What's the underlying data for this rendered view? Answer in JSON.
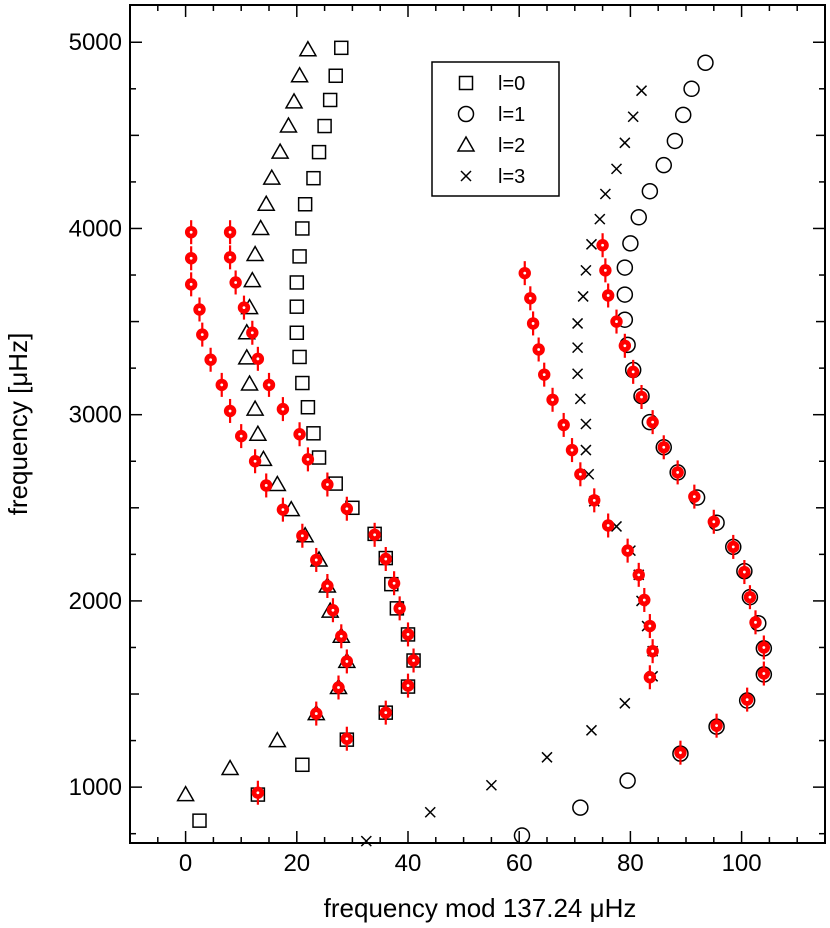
{
  "chart_data": {
    "type": "scatter",
    "xlabel": "frequency mod 137.24 μHz",
    "ylabel": "frequency [μHz]",
    "xlim": [
      -10,
      115
    ],
    "ylim": [
      700,
      5200
    ],
    "x_ticks": [
      0,
      20,
      40,
      60,
      80,
      100
    ],
    "y_ticks": [
      1000,
      2000,
      3000,
      4000,
      5000
    ],
    "legend_position": "top-center",
    "colors": {
      "model": "#000000",
      "observed": "#ff0000"
    },
    "series": [
      {
        "name": "l=0",
        "marker": "square",
        "points": [
          [
            2.5,
            820
          ],
          [
            13,
            960
          ],
          [
            21,
            1120
          ],
          [
            29,
            1255
          ],
          [
            36,
            1400
          ],
          [
            40,
            1540
          ],
          [
            41,
            1680
          ],
          [
            40,
            1820
          ],
          [
            38,
            1960
          ],
          [
            37,
            2090
          ],
          [
            36,
            2230
          ],
          [
            34,
            2360
          ],
          [
            30,
            2500
          ],
          [
            27,
            2630
          ],
          [
            24,
            2770
          ],
          [
            23,
            2900
          ],
          [
            22,
            3040
          ],
          [
            21,
            3170
          ],
          [
            20.5,
            3310
          ],
          [
            20,
            3440
          ],
          [
            20,
            3580
          ],
          [
            20,
            3710
          ],
          [
            20.5,
            3850
          ],
          [
            21,
            4000
          ],
          [
            21.5,
            4130
          ],
          [
            23,
            4270
          ],
          [
            24,
            4410
          ],
          [
            25,
            4550
          ],
          [
            26,
            4690
          ],
          [
            27,
            4820
          ],
          [
            28,
            4970
          ]
        ]
      },
      {
        "name": "l=1",
        "marker": "circle",
        "points": [
          [
            60.5,
            740
          ],
          [
            71,
            890
          ],
          [
            79.5,
            1035
          ],
          [
            89,
            1180
          ],
          [
            95.5,
            1325
          ],
          [
            101,
            1465
          ],
          [
            104,
            1605
          ],
          [
            104,
            1745
          ],
          [
            103,
            1880
          ],
          [
            101.5,
            2020
          ],
          [
            100.5,
            2160
          ],
          [
            98.5,
            2290
          ],
          [
            95.5,
            2420
          ],
          [
            92,
            2555
          ],
          [
            88.5,
            2690
          ],
          [
            86,
            2825
          ],
          [
            83.5,
            2960
          ],
          [
            82,
            3100
          ],
          [
            80.5,
            3240
          ],
          [
            79.5,
            3375
          ],
          [
            79,
            3510
          ],
          [
            79,
            3645
          ],
          [
            79,
            3790
          ],
          [
            80,
            3920
          ],
          [
            81.5,
            4060
          ],
          [
            83.5,
            4200
          ],
          [
            86,
            4340
          ],
          [
            88,
            4470
          ],
          [
            89.5,
            4610
          ],
          [
            91,
            4750
          ],
          [
            93.5,
            4890
          ]
        ]
      },
      {
        "name": "l=2",
        "marker": "triangle",
        "points": [
          [
            0,
            960
          ],
          [
            8,
            1100
          ],
          [
            16.5,
            1250
          ],
          [
            23.5,
            1395
          ],
          [
            27.5,
            1535
          ],
          [
            29,
            1675
          ],
          [
            28,
            1810
          ],
          [
            26,
            1945
          ],
          [
            25.5,
            2080
          ],
          [
            24,
            2220
          ],
          [
            21.5,
            2350
          ],
          [
            19,
            2490
          ],
          [
            16.5,
            2625
          ],
          [
            14,
            2760
          ],
          [
            13,
            2895
          ],
          [
            12.5,
            3030
          ],
          [
            11.5,
            3165
          ],
          [
            11,
            3305
          ],
          [
            11,
            3440
          ],
          [
            11.5,
            3575
          ],
          [
            12,
            3720
          ],
          [
            12.5,
            3860
          ],
          [
            13.5,
            4000
          ],
          [
            14.5,
            4130
          ],
          [
            15.5,
            4270
          ],
          [
            17,
            4410
          ],
          [
            18.5,
            4550
          ],
          [
            19.5,
            4680
          ],
          [
            20.5,
            4820
          ],
          [
            22,
            4960
          ]
        ]
      },
      {
        "name": "l=3",
        "marker": "cross",
        "points": [
          [
            32.5,
            710
          ],
          [
            44,
            865
          ],
          [
            55,
            1010
          ],
          [
            65,
            1160
          ],
          [
            73,
            1305
          ],
          [
            79,
            1450
          ],
          [
            84,
            1595
          ],
          [
            84,
            1730
          ],
          [
            83,
            1865
          ],
          [
            82,
            2000
          ],
          [
            81.5,
            2140
          ],
          [
            80,
            2270
          ],
          [
            77.5,
            2400
          ],
          [
            73.5,
            2535
          ],
          [
            72.5,
            2680
          ],
          [
            72,
            2810
          ],
          [
            72,
            2950
          ],
          [
            71,
            3085
          ],
          [
            70.5,
            3220
          ],
          [
            70.5,
            3360
          ],
          [
            70.5,
            3490
          ],
          [
            71.5,
            3635
          ],
          [
            72,
            3775
          ],
          [
            73,
            3915
          ],
          [
            74.5,
            4050
          ],
          [
            75.5,
            4185
          ],
          [
            77.5,
            4320
          ],
          [
            79,
            4460
          ],
          [
            80.5,
            4600
          ],
          [
            82,
            4740
          ]
        ]
      },
      {
        "name": "",
        "marker": "red-dot-errorbar",
        "points": [
          [
            1,
            3980
          ],
          [
            1,
            3840
          ],
          [
            1,
            3700
          ],
          [
            2.5,
            3565
          ],
          [
            3,
            3430
          ],
          [
            4.5,
            3295
          ],
          [
            6.5,
            3160
          ],
          [
            8,
            3020
          ],
          [
            10,
            2885
          ],
          [
            12.5,
            2750
          ],
          [
            14.5,
            2620
          ],
          [
            17.5,
            2490
          ],
          [
            21,
            2350
          ],
          [
            23.5,
            2220
          ],
          [
            25.5,
            2080
          ],
          [
            26.5,
            1950
          ],
          [
            28,
            1810
          ],
          [
            29,
            1675
          ],
          [
            27.5,
            1535
          ],
          [
            23.5,
            1395
          ],
          [
            13,
            970
          ],
          [
            8,
            3980
          ],
          [
            8,
            3845
          ],
          [
            9,
            3710
          ],
          [
            10.5,
            3575
          ],
          [
            12,
            3440
          ],
          [
            13,
            3300
          ],
          [
            15,
            3160
          ],
          [
            17.5,
            3030
          ],
          [
            20.5,
            2895
          ],
          [
            22,
            2760
          ],
          [
            25.5,
            2625
          ],
          [
            29,
            2495
          ],
          [
            34,
            2355
          ],
          [
            36,
            2225
          ],
          [
            37.5,
            2095
          ],
          [
            38.5,
            1960
          ],
          [
            40,
            1820
          ],
          [
            41,
            1680
          ],
          [
            40,
            1545
          ],
          [
            36,
            1400
          ],
          [
            29,
            1260
          ],
          [
            61,
            3760
          ],
          [
            62,
            3625
          ],
          [
            62.5,
            3490
          ],
          [
            63.5,
            3350
          ],
          [
            64.5,
            3215
          ],
          [
            66,
            3080
          ],
          [
            68,
            2945
          ],
          [
            69.5,
            2810
          ],
          [
            71,
            2680
          ],
          [
            73.5,
            2540
          ],
          [
            76,
            2405
          ],
          [
            79.5,
            2270
          ],
          [
            81.5,
            2140
          ],
          [
            82.5,
            2005
          ],
          [
            83.5,
            1865
          ],
          [
            84,
            1730
          ],
          [
            83.5,
            1590
          ],
          [
            75,
            3910
          ],
          [
            75.5,
            3775
          ],
          [
            76,
            3640
          ],
          [
            77.5,
            3500
          ],
          [
            79,
            3370
          ],
          [
            80.5,
            3230
          ],
          [
            82,
            3095
          ],
          [
            84,
            2960
          ],
          [
            86,
            2825
          ],
          [
            88.5,
            2690
          ],
          [
            91.5,
            2560
          ],
          [
            95,
            2425
          ],
          [
            98.5,
            2290
          ],
          [
            100.5,
            2155
          ],
          [
            101.5,
            2020
          ],
          [
            102.5,
            1885
          ],
          [
            104,
            1750
          ],
          [
            104,
            1610
          ],
          [
            101,
            1470
          ],
          [
            95.5,
            1330
          ],
          [
            89,
            1185
          ]
        ]
      }
    ]
  },
  "legend": {
    "labels": [
      "l=0",
      "l=1",
      "l=2",
      "l=3"
    ],
    "markers": [
      "square",
      "circle",
      "triangle",
      "cross"
    ]
  }
}
